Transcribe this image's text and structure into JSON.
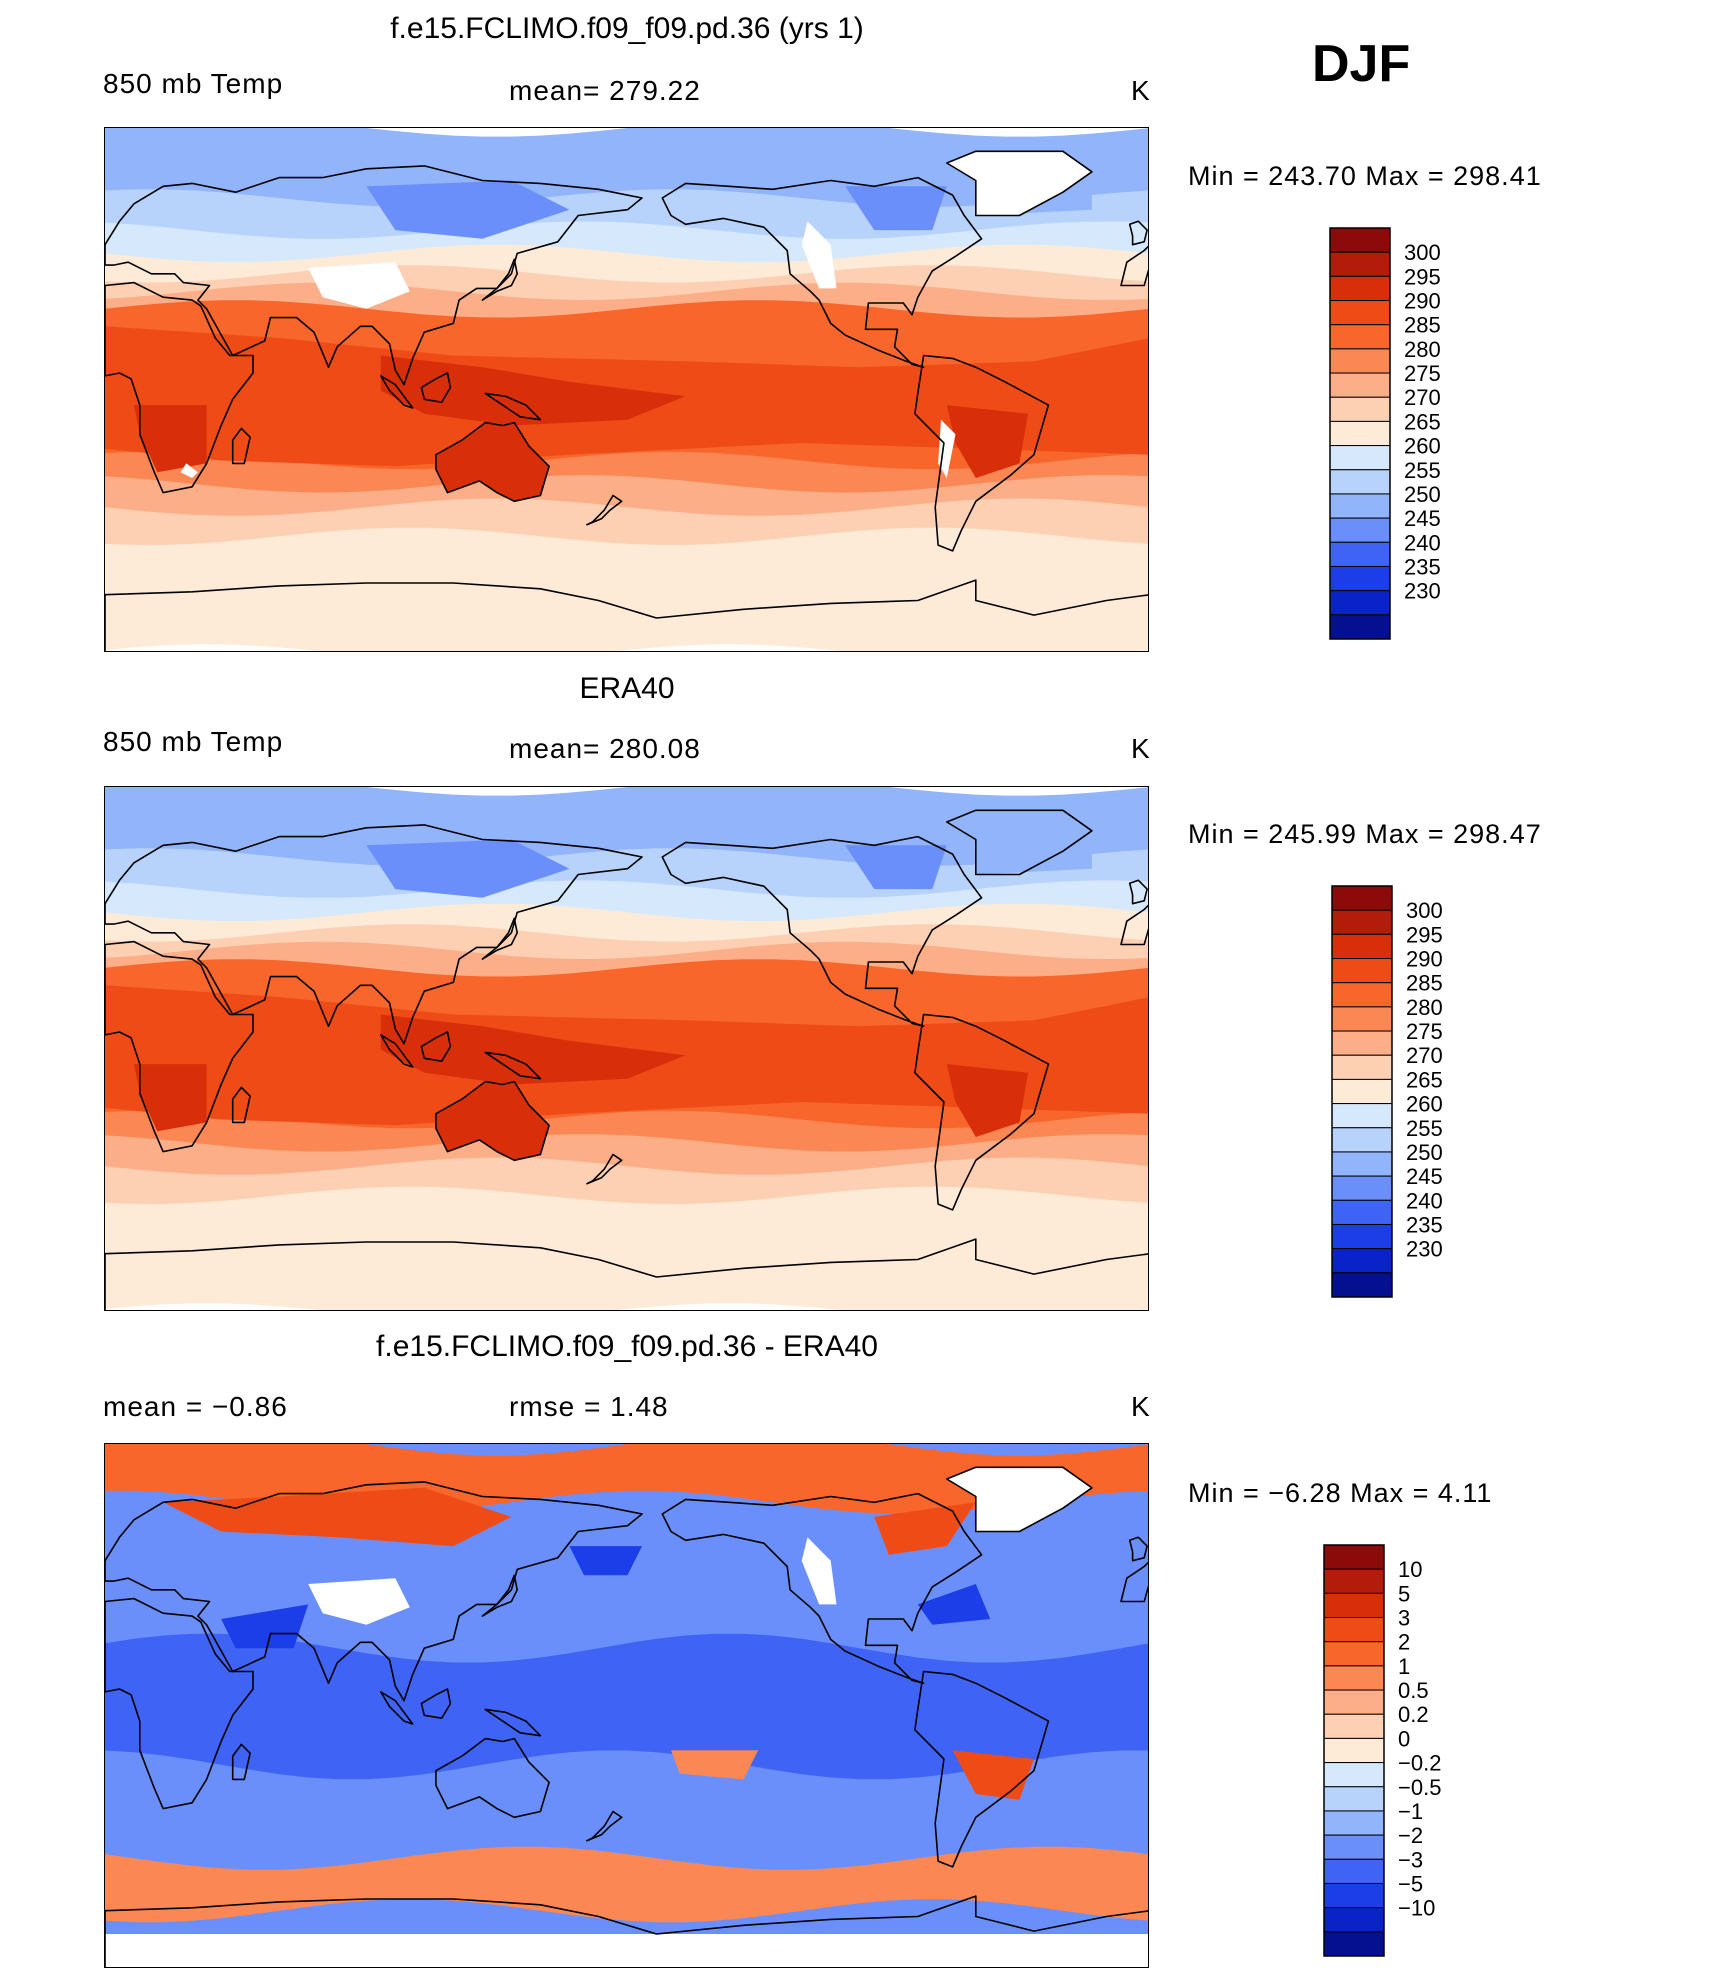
{
  "season": "DJF",
  "units_label": "K",
  "panels": [
    {
      "id": "model",
      "title": "f.e15.FCLIMO.f09_f09.pd.36 (yrs 1)",
      "left_label": "850 mb Temp",
      "center_label": "mean=  279.22",
      "right_label": "K",
      "minmax": "Min  =  243.70  Max  =  298.41",
      "colorbar": {
        "labels": [
          "300",
          "295",
          "290",
          "285",
          "280",
          "275",
          "270",
          "265",
          "260",
          "255",
          "250",
          "245",
          "240",
          "235",
          "230"
        ],
        "colors": [
          "#8c0a0a",
          "#b31b0a",
          "#d82e0a",
          "#ef4b17",
          "#f8662c",
          "#fb8754",
          "#fcae88",
          "#fdd0b4",
          "#fdebd8",
          "#d6e8fb",
          "#b7d2fb",
          "#91b4fa",
          "#6b8ffa",
          "#3f64f5",
          "#1c3ee8",
          "#0a23c8",
          "#04108f"
        ]
      },
      "snow_mask": true
    },
    {
      "id": "obs",
      "title": "ERA40",
      "left_label": "850 mb Temp",
      "center_label": "mean=  280.08",
      "right_label": "K",
      "minmax": "Min  =  245.99  Max  =  298.47",
      "colorbar": {
        "labels": [
          "300",
          "295",
          "290",
          "285",
          "280",
          "275",
          "270",
          "265",
          "260",
          "255",
          "250",
          "245",
          "240",
          "235",
          "230"
        ],
        "colors": [
          "#8c0a0a",
          "#b31b0a",
          "#d82e0a",
          "#ef4b17",
          "#f8662c",
          "#fb8754",
          "#fcae88",
          "#fdd0b4",
          "#fdebd8",
          "#d6e8fb",
          "#b7d2fb",
          "#91b4fa",
          "#6b8ffa",
          "#3f64f5",
          "#1c3ee8",
          "#0a23c8",
          "#04108f"
        ]
      },
      "snow_mask": false
    },
    {
      "id": "diff",
      "title": "f.e15.FCLIMO.f09_f09.pd.36 - ERA40",
      "left_label": "mean  =   −0.86",
      "center_label": "rmse  =     1.48",
      "right_label": "K",
      "minmax": "Min  =    −6.28  Max  =     4.11",
      "colorbar": {
        "labels": [
          "10",
          "5",
          "3",
          "2",
          "1",
          "0.5",
          "0.2",
          "0",
          "−0.2",
          "−0.5",
          "−1",
          "−2",
          "−3",
          "−5",
          "−10"
        ],
        "colors": [
          "#8c0a0a",
          "#b31b0a",
          "#d82e0a",
          "#ef4b17",
          "#f8662c",
          "#fb8754",
          "#fcae88",
          "#fdd0b4",
          "#fdebd8",
          "#d6e8fb",
          "#b7d2fb",
          "#91b4fa",
          "#6b8ffa",
          "#3f64f5",
          "#1c3ee8",
          "#0a23c8",
          "#04108f"
        ]
      },
      "snow_mask": true
    }
  ]
}
